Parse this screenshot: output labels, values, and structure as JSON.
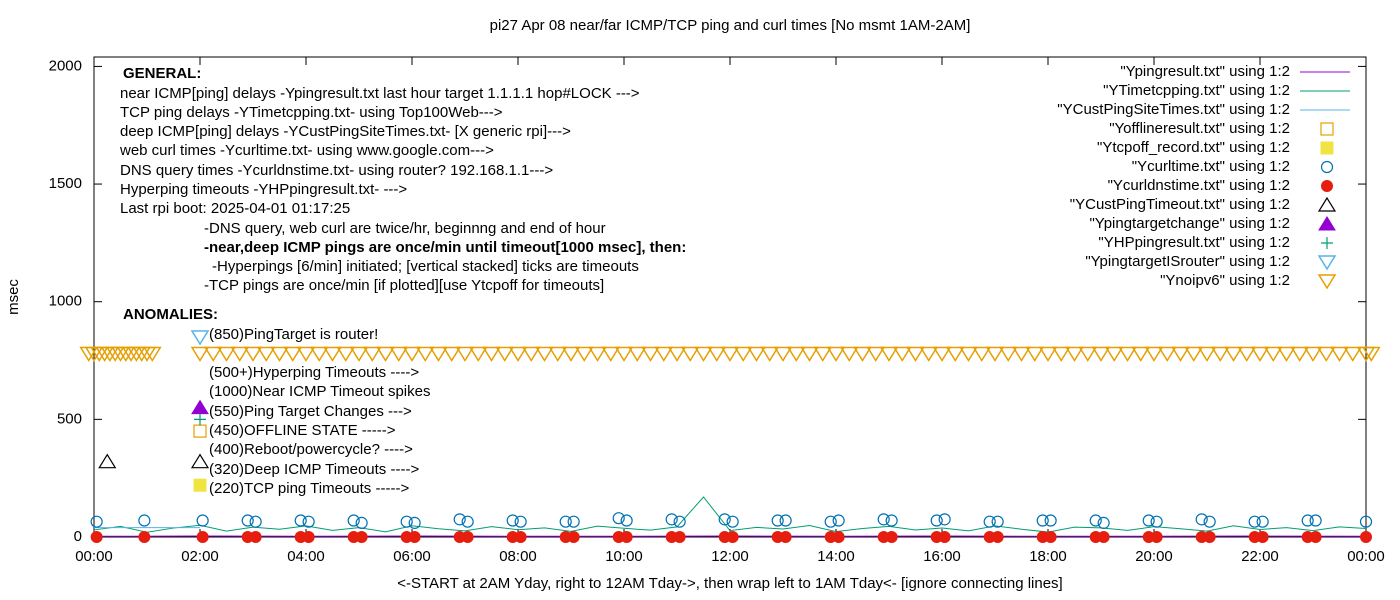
{
  "chart_data": {
    "type": "scatter",
    "title": "pi27 Apr 08  near/far ICMP/TCP ping and curl times [No msmt 1AM-2AM]",
    "xlabel": "<-START at 2AM Yday, right to 12AM Tday->, then wrap left to 1AM Tday<- [ignore connecting lines]",
    "ylabel": "msec",
    "xlim": [
      0,
      24
    ],
    "ylim": [
      0,
      2040
    ],
    "xticks": [
      {
        "value": 0,
        "label": "00:00"
      },
      {
        "value": 2,
        "label": "02:00"
      },
      {
        "value": 4,
        "label": "04:00"
      },
      {
        "value": 6,
        "label": "06:00"
      },
      {
        "value": 8,
        "label": "08:00"
      },
      {
        "value": 10,
        "label": "10:00"
      },
      {
        "value": 12,
        "label": "12:00"
      },
      {
        "value": 14,
        "label": "14:00"
      },
      {
        "value": 16,
        "label": "16:00"
      },
      {
        "value": 18,
        "label": "18:00"
      },
      {
        "value": 20,
        "label": "20:00"
      },
      {
        "value": 22,
        "label": "22:00"
      },
      {
        "value": 24,
        "label": "00:00"
      }
    ],
    "yticks": [
      0,
      500,
      1000,
      1500,
      2000
    ],
    "annotations": [
      "GENERAL:",
      "near ICMP[ping] delays -Ypingresult.txt last hour target 1.1.1.1 hop#LOCK --->",
      "TCP ping delays -YTimetcpping.txt- using Top100Web--->",
      "deep ICMP[ping] delays -YCustPingSiteTimes.txt- [X generic rpi]--->",
      "web curl times -Ycurltime.txt- using www.google.com--->",
      "DNS query times -Ycurldnstime.txt- using router? 192.168.1.1--->",
      "Hyperping timeouts -YHPpingresult.txt- --->",
      "Last rpi boot: 2025-04-01 01:17:25",
      "-DNS query, web curl are twice/hr, beginnng and end of hour",
      "-near,deep ICMP pings are once/min until timeout[1000 msec], then:",
      "-Hyperpings [6/min] initiated; [vertical stacked] ticks are timeouts",
      "-TCP pings are once/min [if plotted][use Ytcpoff for timeouts]",
      "ANOMALIES:",
      "(850)PingTarget is router!",
      "(500+)Hyperping Timeouts ---->",
      "(1000)Near ICMP Timeout spikes",
      "(550)Ping Target Changes --->",
      "(450)OFFLINE STATE ----->",
      "(400)Reboot/powercycle? ---->",
      "(320)Deep ICMP Timeouts ---->",
      "(220)TCP ping Timeouts ----->"
    ],
    "series": [
      {
        "name": "\"Ypingresult.txt\" using 1:2",
        "color": "#9400d3",
        "style": "line",
        "x": [
          0,
          2,
          4,
          6,
          8,
          10,
          12,
          14,
          16,
          18,
          20,
          22,
          24
        ],
        "values": [
          3,
          4,
          3,
          4,
          3,
          3,
          4,
          3,
          4,
          3,
          3,
          4,
          3
        ]
      },
      {
        "name": "\"YTimetcpping.txt\" using 1:2",
        "color": "#009e73",
        "style": "line",
        "x": [
          0,
          0.5,
          1,
          1.5,
          2,
          2.5,
          3,
          3.5,
          4,
          4.5,
          5,
          5.5,
          6,
          6.5,
          7,
          7.5,
          8,
          8.5,
          9,
          9.5,
          10,
          10.5,
          11,
          11.5,
          12,
          12.5,
          13,
          13.5,
          14,
          14.5,
          15,
          15.5,
          16,
          16.5,
          17,
          17.5,
          18,
          18.5,
          19,
          19.5,
          20,
          20.5,
          21,
          21.5,
          22,
          22.5,
          23,
          23.5,
          24
        ],
        "values": [
          30,
          45,
          20,
          38,
          50,
          25,
          42,
          33,
          47,
          28,
          40,
          22,
          48,
          35,
          26,
          44,
          31,
          39,
          24,
          46,
          37,
          29,
          43,
          170,
          27,
          41,
          34,
          49,
          23,
          36,
          45,
          30,
          38,
          26,
          47,
          33,
          21,
          42,
          39,
          28,
          44,
          35,
          25,
          48,
          32,
          40,
          27,
          43,
          36
        ]
      },
      {
        "name": "\"YCustPingSiteTimes.txt\" using 1:2",
        "color": "#56b4e9",
        "style": "line",
        "x": [
          0,
          2
        ],
        "values": [
          40,
          40
        ]
      },
      {
        "name": "\"Yofflineresult.txt\" using 1:2",
        "color": "#e69f00",
        "style": "open-square",
        "x": [
          2
        ],
        "values": [
          450
        ]
      },
      {
        "name": "\"Ytcpoff_record.txt\" using 1:2",
        "color": "#f0e442",
        "style": "filled-square",
        "x": [
          2
        ],
        "values": [
          220
        ]
      },
      {
        "name": "\"Ycurltime.txt\" using 1:2",
        "color": "#0072b2",
        "style": "open-circle",
        "x": [
          0.05,
          0.95,
          2.05,
          2.9,
          3.05,
          3.9,
          4.05,
          4.9,
          5.05,
          5.9,
          6.05,
          6.9,
          7.05,
          7.9,
          8.05,
          8.9,
          9.05,
          9.9,
          10.05,
          10.9,
          11.05,
          11.9,
          12.05,
          12.9,
          13.05,
          13.9,
          14.05,
          14.9,
          15.05,
          15.9,
          16.05,
          16.9,
          17.05,
          17.9,
          18.05,
          18.9,
          19.05,
          19.9,
          20.05,
          20.9,
          21.05,
          21.9,
          22.05,
          22.9,
          23.05,
          24
        ],
        "values": [
          65,
          70,
          70,
          70,
          65,
          70,
          65,
          70,
          60,
          65,
          60,
          75,
          65,
          70,
          65,
          65,
          65,
          80,
          70,
          75,
          65,
          75,
          65,
          70,
          70,
          65,
          70,
          75,
          70,
          70,
          75,
          65,
          65,
          70,
          70,
          70,
          60,
          70,
          65,
          75,
          65,
          65,
          65,
          70,
          70,
          65
        ]
      },
      {
        "name": "\"Ycurldnstime.txt\" using 1:2",
        "color": "#e51e10",
        "style": "filled-circle",
        "x": [
          0.05,
          0.95,
          2.05,
          2.9,
          3.05,
          3.9,
          4.05,
          4.9,
          5.05,
          5.9,
          6.05,
          6.9,
          7.05,
          7.9,
          8.05,
          8.9,
          9.05,
          9.9,
          10.05,
          10.9,
          11.05,
          11.9,
          12.05,
          12.9,
          13.05,
          13.9,
          14.05,
          14.9,
          15.05,
          15.9,
          16.05,
          16.9,
          17.05,
          17.9,
          18.05,
          18.9,
          19.05,
          19.9,
          20.05,
          20.9,
          21.05,
          21.9,
          22.05,
          22.9,
          23.05,
          24
        ],
        "values": [
          0,
          0,
          0,
          0,
          0,
          0,
          0,
          0,
          0,
          0,
          0,
          0,
          0,
          0,
          0,
          0,
          0,
          0,
          0,
          0,
          0,
          0,
          0,
          0,
          0,
          0,
          0,
          0,
          0,
          0,
          0,
          0,
          0,
          0,
          0,
          0,
          0,
          0,
          0,
          0,
          0,
          0,
          0,
          0,
          0,
          0
        ]
      },
      {
        "name": "\"YCustPingTimeout.txt\" using 1:2",
        "color": "#000000",
        "style": "open-triangle",
        "x": [
          0.25,
          2
        ],
        "values": [
          320,
          320
        ]
      },
      {
        "name": "\"Ypingtargetchange\" using 1:2",
        "color": "#9400d3",
        "style": "filled-triangle",
        "x": [
          2
        ],
        "values": [
          550
        ]
      },
      {
        "name": "\"YHPpingresult.txt\" using 1:2",
        "color": "#009e73",
        "style": "plus",
        "x": [
          2
        ],
        "values": [
          500
        ]
      },
      {
        "name": "\"YpingtargetISrouter\" using 1:2",
        "color": "#56b4e9",
        "style": "open-down-triangle",
        "x": [
          2
        ],
        "values": [
          850
        ]
      },
      {
        "name": "\"Ynoipv6\" using 1:2",
        "color": "#e69f00",
        "style": "open-down-triangle",
        "x": [
          -0.1,
          0,
          0.1,
          0.2,
          0.3,
          0.4,
          0.5,
          0.6,
          0.7,
          0.8,
          0.9,
          1,
          1.1,
          2,
          2.25,
          2.5,
          2.75,
          3,
          3.25,
          3.5,
          3.75,
          4,
          4.25,
          4.5,
          4.75,
          5,
          5.25,
          5.5,
          5.75,
          6,
          6.25,
          6.5,
          6.75,
          7,
          7.25,
          7.5,
          7.75,
          8,
          8.25,
          8.5,
          8.75,
          9,
          9.25,
          9.5,
          9.75,
          10,
          10.25,
          10.5,
          10.75,
          11,
          11.25,
          11.5,
          11.75,
          12,
          12.25,
          12.5,
          12.75,
          13,
          13.25,
          13.5,
          13.75,
          14,
          14.25,
          14.5,
          14.75,
          15,
          15.25,
          15.5,
          15.75,
          16,
          16.25,
          16.5,
          16.75,
          17,
          17.25,
          17.5,
          17.75,
          18,
          18.25,
          18.5,
          18.75,
          19,
          19.25,
          19.5,
          19.75,
          20,
          20.25,
          20.5,
          20.75,
          21,
          21.25,
          21.5,
          21.75,
          22,
          22.25,
          22.5,
          22.75,
          23,
          23.25,
          23.5,
          23.75,
          24,
          24.1
        ],
        "values": [
          780,
          780,
          780,
          780,
          780,
          780,
          780,
          780,
          780,
          780,
          780,
          780,
          780,
          780,
          780,
          780,
          780,
          780,
          780,
          780,
          780,
          780,
          780,
          780,
          780,
          780,
          780,
          780,
          780,
          780,
          780,
          780,
          780,
          780,
          780,
          780,
          780,
          780,
          780,
          780,
          780,
          780,
          780,
          780,
          780,
          780,
          780,
          780,
          780,
          780,
          780,
          780,
          780,
          780,
          780,
          780,
          780,
          780,
          780,
          780,
          780,
          780,
          780,
          780,
          780,
          780,
          780,
          780,
          780,
          780,
          780,
          780,
          780,
          780,
          780,
          780,
          780,
          780,
          780,
          780,
          780,
          780,
          780,
          780,
          780,
          780,
          780,
          780,
          780,
          780,
          780,
          780,
          780,
          780,
          780,
          780,
          780,
          780,
          780,
          780,
          780,
          780,
          780
        ]
      }
    ]
  }
}
